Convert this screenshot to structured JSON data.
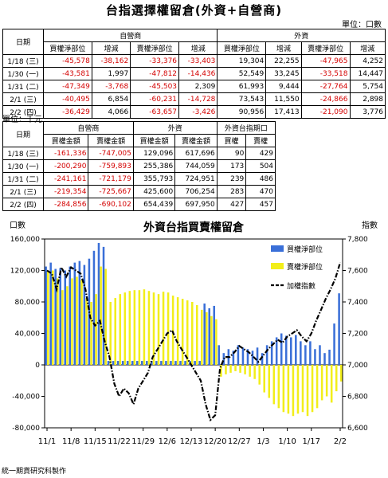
{
  "title": "台指選擇權留倉(外資+自營商)",
  "unit_top": "單位：口數",
  "table1": {
    "group_headers": [
      "日期",
      "自營商",
      "外資"
    ],
    "col_headers": [
      "買權淨部位",
      "增減",
      "賣權淨部位",
      "增減",
      "買權淨部位",
      "增減",
      "賣權淨部位",
      "增減"
    ],
    "rows": [
      {
        "date": "1/18",
        "dow": "(三)",
        "v": [
          "-45,578",
          "-38,162",
          "-33,376",
          "-33,403",
          "19,304",
          "22,255",
          "-47,965",
          "4,252"
        ]
      },
      {
        "date": "1/30",
        "dow": "(一)",
        "v": [
          "-43,581",
          "1,997",
          "-47,812",
          "-14,436",
          "52,549",
          "33,245",
          "-33,518",
          "14,447"
        ]
      },
      {
        "date": "1/31",
        "dow": "(二)",
        "v": [
          "-47,349",
          "-3,768",
          "-45,503",
          "2,309",
          "61,993",
          "9,444",
          "-27,764",
          "5,754"
        ]
      },
      {
        "date": "2/1",
        "dow": "(三)",
        "v": [
          "-40,495",
          "6,854",
          "-60,231",
          "-14,728",
          "73,543",
          "11,550",
          "-24,866",
          "2,898"
        ]
      },
      {
        "date": "2/2",
        "dow": "(四)",
        "v": [
          "-36,429",
          "4,066",
          "-63,657",
          "-3,426",
          "90,956",
          "17,413",
          "-21,090",
          "3,776"
        ]
      }
    ]
  },
  "unit_mid": "單位：千元",
  "table2": {
    "group_headers": [
      "日期",
      "自營商",
      "外資",
      "外資台指期口"
    ],
    "col_headers": [
      "買權金額",
      "賣權金額",
      "買權金額",
      "賣權金額",
      "買權",
      "賣權"
    ],
    "rows": [
      {
        "date": "1/18",
        "dow": "(三)",
        "v": [
          "-161,336",
          "-747,005",
          "129,096",
          "617,696",
          "90",
          "429"
        ]
      },
      {
        "date": "1/30",
        "dow": "(一)",
        "v": [
          "-200,290",
          "-759,893",
          "255,386",
          "744,059",
          "173",
          "504"
        ]
      },
      {
        "date": "1/31",
        "dow": "(二)",
        "v": [
          "-241,161",
          "-721,179",
          "355,793",
          "724,951",
          "239",
          "486"
        ]
      },
      {
        "date": "2/1",
        "dow": "(三)",
        "v": [
          "-219,354",
          "-725,667",
          "425,600",
          "706,254",
          "283",
          "470"
        ]
      },
      {
        "date": "2/2",
        "dow": "(四)",
        "v": [
          "-284,856",
          "-690,102",
          "654,439",
          "697,950",
          "427",
          "457"
        ]
      }
    ]
  },
  "footer": "統一期貨研究科製作",
  "colors": {
    "red": "#d40000",
    "buy": "#3a6fd8",
    "sell": "#f2ee1a",
    "index": "#000000"
  },
  "chart_data": {
    "type": "bar",
    "title": "外資台指買賣權留倉",
    "ylabel_left": "口數",
    "ylabel_right": "指數",
    "ylim": [
      -80000,
      160000
    ],
    "yticks": [
      -80000,
      -40000,
      0,
      40000,
      80000,
      120000,
      160000
    ],
    "ytick_labels": [
      "-80,000",
      "-40,000",
      "0",
      "40,000",
      "80,000",
      "120,000",
      "160,000"
    ],
    "ylim_right": [
      6600,
      7800
    ],
    "yticks_right": [
      6600,
      6800,
      7000,
      7200,
      7400,
      7600,
      7800
    ],
    "ytick_labels_right": [
      "6,600",
      "6,800",
      "7,000",
      "7,200",
      "7,400",
      "7,600",
      "7,800"
    ],
    "xtick_labels": [
      "11/1",
      "11/8",
      "11/15",
      "11/22",
      "11/29",
      "12/6",
      "12/13",
      "12/20",
      "12/27",
      "1/3",
      "1/10",
      "1/17",
      "2/2"
    ],
    "xtick_positions": [
      0,
      5,
      10,
      15,
      20,
      25,
      30,
      35,
      40,
      45,
      50,
      55,
      61
    ],
    "legend_position": "top-right",
    "series": [
      {
        "name": "買權淨部位",
        "kind": "bar",
        "values": [
          125000,
          130000,
          122000,
          123000,
          120000,
          125000,
          130000,
          132000,
          127000,
          135000,
          145000,
          155000,
          150000,
          5000,
          5000,
          5000,
          5000,
          5000,
          5000,
          5000,
          5000,
          5000,
          5000,
          5000,
          5000,
          5000,
          5000,
          5000,
          5000,
          5000,
          5000,
          5000,
          5000,
          78000,
          72000,
          75000,
          25000,
          15000,
          20000,
          18000,
          25000,
          22000,
          20000,
          18000,
          22000,
          15000,
          25000,
          30000,
          35000,
          40000,
          37000,
          35000,
          38000,
          30000,
          25000,
          30000,
          20000,
          25000,
          15000,
          19304,
          52549,
          90956
        ]
      },
      {
        "name": "賣權淨部位",
        "kind": "bar",
        "values": [
          120000,
          120000,
          110000,
          95000,
          100000,
          110000,
          112000,
          108000,
          85000,
          80000,
          90000,
          125000,
          122000,
          80000,
          85000,
          90000,
          92000,
          94000,
          95000,
          95000,
          96000,
          94000,
          92000,
          90000,
          93000,
          92000,
          88000,
          86000,
          84000,
          82000,
          80000,
          76000,
          70000,
          67000,
          62000,
          58000,
          -15000,
          -12000,
          -10000,
          -8000,
          -10000,
          -12000,
          -15000,
          -18000,
          -25000,
          -35000,
          -42000,
          -50000,
          -55000,
          -60000,
          -62000,
          -65000,
          -62000,
          -60000,
          -65000,
          -60000,
          -55000,
          -45000,
          -40000,
          -47965,
          -33518,
          -21090
        ]
      },
      {
        "name": "加權指數",
        "kind": "line",
        "axis": "right",
        "values": [
          7600,
          7580,
          7480,
          7620,
          7560,
          7620,
          7600,
          7580,
          7480,
          7300,
          7250,
          7280,
          7150,
          7050,
          6880,
          6800,
          6850,
          6820,
          6750,
          6850,
          6900,
          6950,
          7050,
          7100,
          7150,
          7200,
          7220,
          7150,
          7100,
          7050,
          7000,
          6950,
          6900,
          6750,
          6650,
          6680,
          6980,
          7050,
          7050,
          7080,
          7120,
          7100,
          7080,
          7050,
          7020,
          7060,
          7100,
          7130,
          7160,
          7140,
          7180,
          7200,
          7220,
          7180,
          7150,
          7200,
          7280,
          7350,
          7420,
          7480,
          7550,
          7650
        ]
      }
    ]
  }
}
